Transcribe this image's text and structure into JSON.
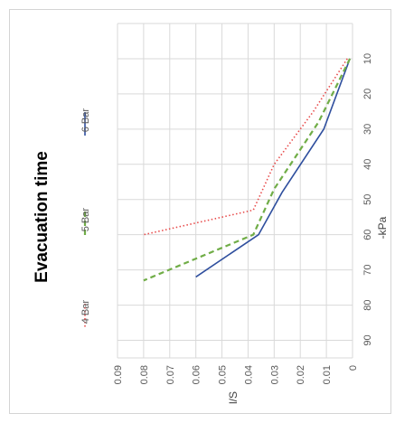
{
  "chart_data": {
    "type": "line",
    "title": "Evacuation time",
    "xlabel": "-kPa",
    "ylabel": "l/S",
    "xlim": [
      0,
      95
    ],
    "ylim": [
      0,
      0.09
    ],
    "x_ticks": [
      "10",
      "20",
      "30",
      "40",
      "50",
      "60",
      "70",
      "80",
      "90"
    ],
    "y_ticks": [
      "0",
      "0.01",
      "0.02",
      "0.03",
      "0.04",
      "0.05",
      "0.06",
      "0.07",
      "0.08",
      "0.09"
    ],
    "grid": true,
    "legend_position": "left",
    "series": [
      {
        "name": "6 Bar",
        "color": "#2f4f9e",
        "style": "solid",
        "points": [
          [
            10,
            0.001
          ],
          [
            30,
            0.011
          ],
          [
            48,
            0.027
          ],
          [
            60,
            0.036
          ],
          [
            72,
            0.06
          ]
        ]
      },
      {
        "name": "5 Bar",
        "color": "#70ad47",
        "style": "dashed",
        "points": [
          [
            10,
            0.001
          ],
          [
            28,
            0.013
          ],
          [
            47,
            0.03
          ],
          [
            60,
            0.038
          ],
          [
            73,
            0.08
          ]
        ]
      },
      {
        "name": "4 Bar",
        "color": "#e84b4b",
        "style": "dotted",
        "points": [
          [
            10,
            0.002
          ],
          [
            25,
            0.015
          ],
          [
            40,
            0.03
          ],
          [
            53,
            0.038
          ],
          [
            60,
            0.08
          ]
        ]
      }
    ]
  }
}
